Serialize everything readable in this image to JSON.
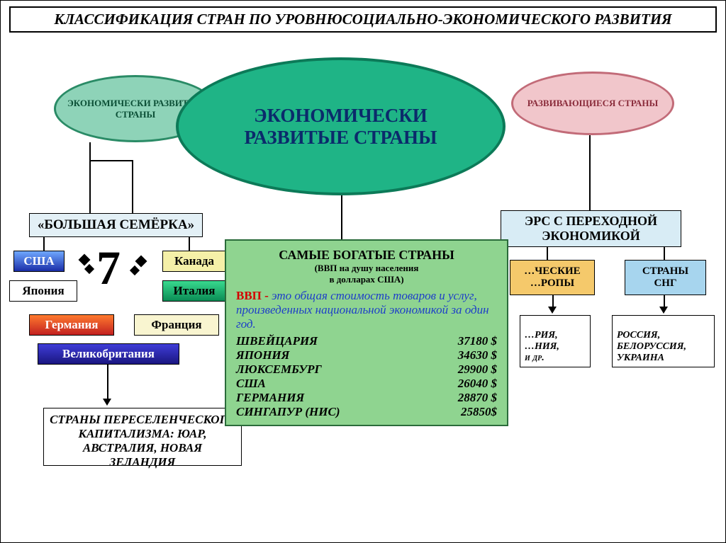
{
  "header": "КЛАССИФИКАЦИЯ СТРАН ПО УРОВНЮСОЦИАЛЬНО-ЭКОНОМИЧЕСКОГО РАЗВИТИЯ",
  "ellipses": {
    "left": {
      "text": "ЭКОНОМИЧЕСКИ РАЗВИТЫЕ СТРАНЫ",
      "fill": "#8ed3b8",
      "stroke": "#2a8b66",
      "color": "#0b4f36"
    },
    "right": {
      "text": "РАЗВИВАЮЩИЕСЯ СТРАНЫ",
      "fill": "#f1c6cb",
      "stroke": "#c26b78",
      "color": "#8a2c3b"
    },
    "big": {
      "text": "ЭКОНОМИЧЕСКИ РАЗВИТЫЕ СТРАНЫ",
      "fill": "#1fb486",
      "stroke": "#0c7a58",
      "color": "#0b2a6b"
    }
  },
  "g7": {
    "title": "«БОЛЬШАЯ СЕМЁРКА»",
    "seven": "7",
    "countries": {
      "usa": {
        "label": "США",
        "grad_top": "#6fa8ff",
        "grad_bot": "#1a2ea8"
      },
      "japan": {
        "label": "Япония"
      },
      "canada": {
        "label": "Канада",
        "bg": "#f5f0a8"
      },
      "italy": {
        "label": "Италия",
        "grad_top": "#38d98e",
        "grad_bot": "#0a8c55"
      },
      "germany": {
        "label": "Германия",
        "grad_top": "#ff7a2e",
        "grad_bot": "#c22020"
      },
      "france": {
        "label": "Франция",
        "bg": "#f9f5d0"
      },
      "uk": {
        "label": "Великобритания",
        "grad_top": "#3f3dd8",
        "grad_bot": "#1a1680"
      }
    }
  },
  "ers": {
    "title1": "ЭРС С ПЕРЕХОДНОЙ",
    "title2": "ЭКОНОМИКОЙ",
    "box_bg": "#d8ecf5",
    "left_box": {
      "line1": "…ЧЕСКИЕ",
      "line2": "…РОПЫ",
      "bg": "#f5c96b"
    },
    "right_box": {
      "line1": "СТРАНЫ",
      "line2": "СНГ",
      "bg": "#a7d5ee"
    },
    "left_list": "…РИЯ,\n…НИЯ,\nи др.",
    "right_list": "РОССИЯ,\nБЕЛОРУССИЯ,\nУКРАИНА"
  },
  "capitalism": "СТРАНЫ ПЕРЕСЕЛЕНЧЕСКОГО КАПИТАЛИЗМА: ЮАР, АВСТРАЛИЯ, НОВАЯ ЗЕЛАНДИЯ",
  "rich": {
    "title": "САМЫЕ БОГАТЫЕ СТРАНЫ",
    "sub1": "(ВВП на душу населения",
    "sub2": "в долларах США)",
    "gdp_label": "ВВП -",
    "gdp_def": " это общая стоимость товаров и услуг, произведенных национальной экономикой за один год.",
    "rows": [
      {
        "name": "ШВЕЙЦАРИЯ",
        "val": "37180 $"
      },
      {
        "name": "ЯПОНИЯ",
        "val": "34630 $"
      },
      {
        "name": "ЛЮКСЕМБУРГ",
        "val": "29900 $"
      },
      {
        "name": "США",
        "val": "26040 $"
      },
      {
        "name": "ГЕРМАНИЯ",
        "val": "28870 $"
      },
      {
        "name": "СИНГАПУР (НИС)",
        "val": "25850$"
      }
    ]
  },
  "style": {
    "header_border": "#000",
    "line_color": "#000"
  }
}
